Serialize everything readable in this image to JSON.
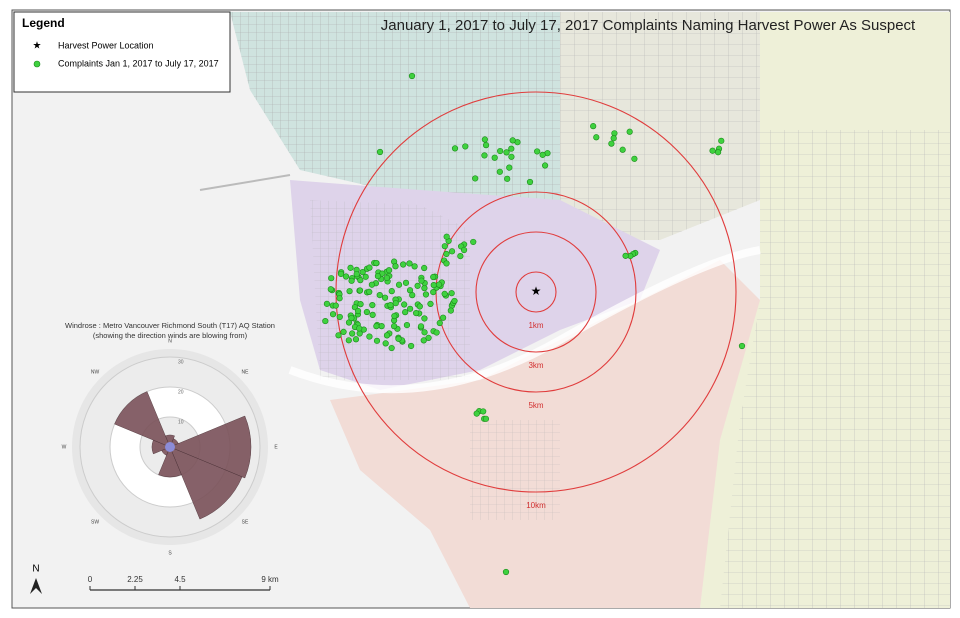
{
  "title": "January 1, 2017  to July 17,  2017 Complaints Naming Harvest Power As Suspect",
  "legend": {
    "heading": "Legend",
    "items": [
      "Harvest Power Location",
      "Complaints Jan 1, 2017 to July 17, 2017"
    ]
  },
  "rings": [
    {
      "value": 1,
      "label": "1km"
    },
    {
      "value": 3,
      "label": "3km"
    },
    {
      "value": 5,
      "label": "5km"
    },
    {
      "value": 10,
      "label": "10km"
    }
  ],
  "windrose": {
    "title": "Windrose : Metro Vancouver Richmond South (T17) AQ Station",
    "subtitle": "(showing the direction winds are blowing from)",
    "directions": [
      "N",
      "NE",
      "E",
      "SE",
      "S",
      "SW",
      "W",
      "NW"
    ],
    "petals": [
      4,
      3,
      27,
      26,
      10,
      3,
      6,
      20
    ],
    "rings": [
      10,
      20,
      30
    ]
  },
  "north": "N",
  "scale": [
    0,
    2.25,
    4.5,
    {
      "value": 9,
      "label": "9 km"
    }
  ]
}
